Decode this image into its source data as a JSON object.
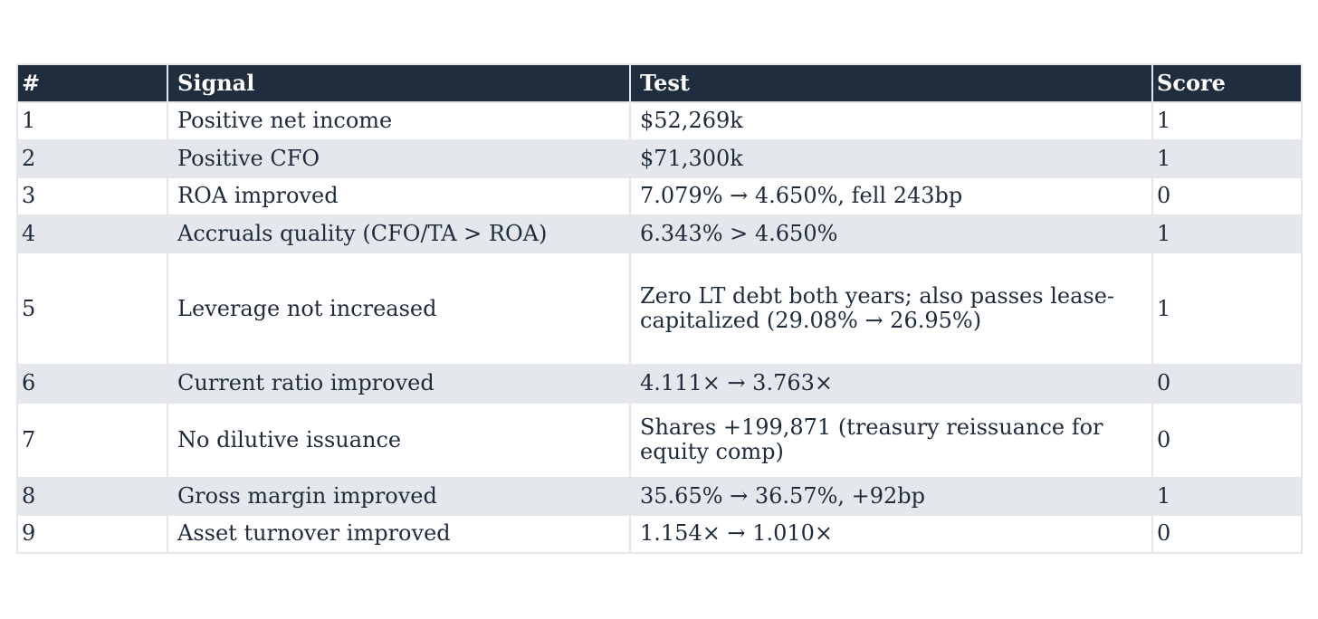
{
  "table": {
    "headers": {
      "num": "#",
      "signal": "Signal",
      "test": "Test",
      "score": "Score"
    },
    "rows": [
      {
        "num": "1",
        "signal": "Positive net income",
        "test": "$52,269k",
        "score": "1"
      },
      {
        "num": "2",
        "signal": "Positive CFO",
        "test": "$71,300k",
        "score": "1"
      },
      {
        "num": "3",
        "signal": "ROA improved",
        "test": "7.079% → 4.650%, fell 243bp",
        "score": "0"
      },
      {
        "num": "4",
        "signal": "Accruals quality (CFO/TA > ROA)",
        "test": "6.343% > 4.650%",
        "score": "1"
      },
      {
        "num": "5",
        "signal": "Leverage not increased",
        "test": "Zero LT debt both years; also passes lease-capitalized (29.08% → 26.95%)",
        "score": "1"
      },
      {
        "num": "6",
        "signal": "Current ratio improved",
        "test": "4.111× → 3.763×",
        "score": "0"
      },
      {
        "num": "7",
        "signal": "No dilutive issuance",
        "test": "Shares +199,871 (treasury reissuance for equity comp)",
        "score": "0"
      },
      {
        "num": "8",
        "signal": "Gross margin improved",
        "test": "35.65% → 36.57%, +92bp",
        "score": "1"
      },
      {
        "num": "9",
        "signal": "Asset turnover improved",
        "test": "1.154× → 1.010×",
        "score": "0"
      }
    ]
  },
  "colors": {
    "header_bg": "#1f2d3f",
    "header_text": "#ffffff",
    "stripe_bg": "#e4e7ec",
    "text": "#1e2b3c"
  }
}
